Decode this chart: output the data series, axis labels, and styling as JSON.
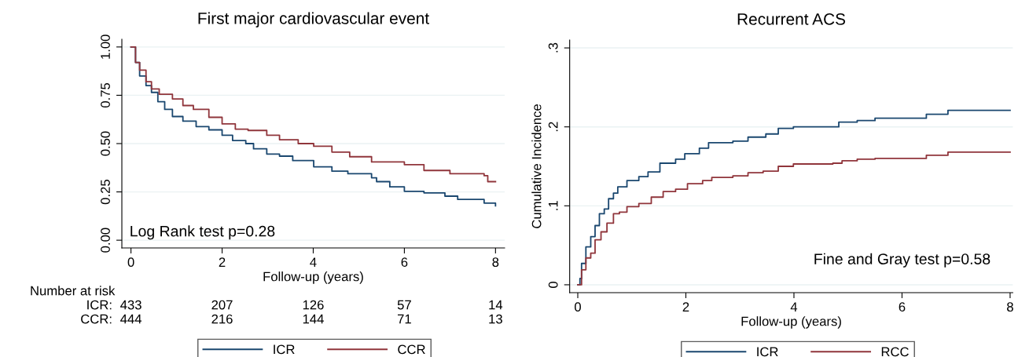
{
  "chart_data": [
    {
      "type": "step",
      "title": "First major cardiovascular event",
      "xlabel": "Follow-up (years)",
      "xlim": [
        -0.2,
        8.2
      ],
      "xticks": [
        0,
        2,
        4,
        6,
        8
      ],
      "ylim": [
        -0.04,
        1.04
      ],
      "yticks": [
        {
          "value": 0,
          "label": "0.00"
        },
        {
          "value": 0.25,
          "label": "0.25"
        },
        {
          "value": 0.5,
          "label": "0.50"
        },
        {
          "value": 0.75,
          "label": "0.75"
        },
        {
          "value": 1,
          "label": "1.00"
        }
      ],
      "grid": "y",
      "legend": "bottom",
      "line_style": "solid",
      "series": [
        {
          "name": "ICR",
          "color": "#1a476f",
          "x": [
            0,
            0.1,
            0.19,
            0.33,
            0.45,
            0.59,
            0.74,
            0.91,
            1.14,
            1.43,
            1.71,
            2.0,
            2.23,
            2.52,
            2.69,
            2.98,
            3.26,
            3.55,
            4.01,
            4.41,
            4.76,
            5.28,
            5.39,
            5.68,
            6.0,
            6.43,
            6.89,
            7.17,
            7.75,
            8.0
          ],
          "values": [
            1.0,
            0.92,
            0.85,
            0.8,
            0.765,
            0.717,
            0.677,
            0.64,
            0.616,
            0.588,
            0.571,
            0.543,
            0.516,
            0.5,
            0.473,
            0.446,
            0.435,
            0.412,
            0.38,
            0.357,
            0.344,
            0.323,
            0.303,
            0.276,
            0.253,
            0.245,
            0.228,
            0.211,
            0.192,
            0.178
          ]
        },
        {
          "name": "CCR",
          "color": "#90353b",
          "x": [
            0,
            0.1,
            0.19,
            0.33,
            0.45,
            0.62,
            0.91,
            1.14,
            1.37,
            1.71,
            2.0,
            2.29,
            2.57,
            2.98,
            3.26,
            3.67,
            4.01,
            4.41,
            4.8,
            5.28,
            6.0,
            6.43,
            7.0,
            7.75,
            7.83,
            8.0
          ],
          "values": [
            1.0,
            0.92,
            0.88,
            0.82,
            0.783,
            0.755,
            0.731,
            0.697,
            0.677,
            0.636,
            0.602,
            0.575,
            0.568,
            0.543,
            0.52,
            0.5,
            0.486,
            0.456,
            0.432,
            0.405,
            0.391,
            0.361,
            0.344,
            0.334,
            0.303,
            0.303
          ]
        }
      ],
      "annotations": [
        "Log Rank test p=0.28",
        "Number at risk",
        "ICR:",
        "433",
        "207",
        "126",
        "57",
        "14",
        "CCR:",
        "444",
        "216",
        "144",
        "71",
        "13"
      ]
    },
    {
      "type": "step",
      "title": "Recurrent ACS",
      "xlabel": "Follow-up (years)",
      "ylabel": "Cumulative Incidence",
      "xlim": [
        -0.15,
        8.05
      ],
      "xticks": [
        0,
        2,
        4,
        6,
        8
      ],
      "ylim": [
        -0.01,
        0.31
      ],
      "yticks": [
        0,
        {
          "value": 0.1,
          "label": ".1"
        },
        {
          "value": 0.2,
          "label": ".2"
        },
        {
          "value": 0.3,
          "label": ".3"
        }
      ],
      "grid": "y",
      "legend": "bottom",
      "line_style": "solid",
      "series": [
        {
          "name": "ICR",
          "color": "#1a476f",
          "x": [
            0,
            0.04,
            0.07,
            0.15,
            0.24,
            0.32,
            0.4,
            0.49,
            0.57,
            0.66,
            0.74,
            0.91,
            1.13,
            1.3,
            1.52,
            1.81,
            1.98,
            2.25,
            2.42,
            2.87,
            3.15,
            3.48,
            3.71,
            3.99,
            4.72,
            4.83,
            5.17,
            5.5,
            6.42,
            6.45,
            6.82,
            6.85,
            8.0
          ],
          "values": [
            0,
            0.008,
            0.027,
            0.048,
            0.061,
            0.075,
            0.09,
            0.096,
            0.109,
            0.116,
            0.124,
            0.132,
            0.137,
            0.143,
            0.154,
            0.159,
            0.166,
            0.173,
            0.18,
            0.182,
            0.187,
            0.191,
            0.198,
            0.2,
            0.2,
            0.206,
            0.208,
            0.211,
            0.211,
            0.216,
            0.216,
            0.221,
            0.221
          ]
        },
        {
          "name": "RCC",
          "color": "#90353b",
          "x": [
            0,
            0.07,
            0.15,
            0.24,
            0.32,
            0.43,
            0.54,
            0.66,
            0.77,
            0.91,
            1.13,
            1.36,
            1.58,
            1.81,
            2.03,
            2.31,
            2.48,
            2.87,
            3.15,
            3.43,
            3.71,
            3.99,
            4.72,
            4.89,
            5.17,
            5.5,
            6.42,
            6.45,
            6.82,
            6.85,
            8.0
          ],
          "values": [
            0,
            0.019,
            0.034,
            0.04,
            0.057,
            0.067,
            0.078,
            0.09,
            0.092,
            0.099,
            0.103,
            0.111,
            0.118,
            0.121,
            0.128,
            0.132,
            0.136,
            0.138,
            0.142,
            0.144,
            0.15,
            0.153,
            0.154,
            0.157,
            0.159,
            0.16,
            0.16,
            0.164,
            0.164,
            0.168,
            0.168
          ]
        }
      ],
      "annotations": [
        "Fine and Gray test p=0.58"
      ]
    }
  ]
}
